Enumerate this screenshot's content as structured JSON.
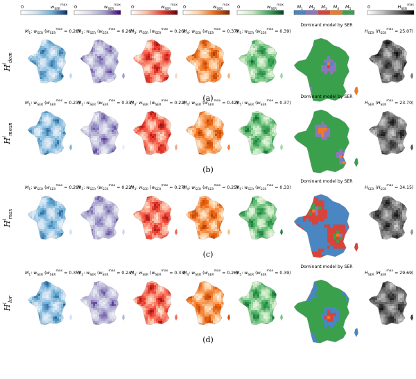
{
  "colorbars": [
    {
      "name": "m1-colorbar",
      "min": "0",
      "max": "w_SER^max",
      "colors": [
        "#ffffff",
        "#cfe1f2",
        "#6aaed6",
        "#08306b"
      ]
    },
    {
      "name": "m2-colorbar",
      "min": "0",
      "max": "w_SER^max",
      "colors": [
        "#ffffff",
        "#dadaeb",
        "#9e9ac8",
        "#3f007d"
      ]
    },
    {
      "name": "m3-colorbar",
      "min": "0",
      "max": "w_SER^max",
      "colors": [
        "#ffffff",
        "#fcbba1",
        "#ef3b2c",
        "#67000d"
      ]
    },
    {
      "name": "m4-colorbar",
      "min": "0",
      "max": "w_SER^max",
      "colors": [
        "#ffffff",
        "#fdd0a2",
        "#f16913",
        "#7f2704"
      ]
    },
    {
      "name": "m5-colorbar",
      "min": "0",
      "max": "w_SER^max",
      "colors": [
        "#ffffff",
        "#c7e9c0",
        "#41ab5d",
        "#00441b"
      ]
    },
    {
      "name": "h-colorbar",
      "min": "0",
      "max": "H_SER^max",
      "colors": [
        "#ffffff",
        "#bdbdbd",
        "#636363",
        "#000000"
      ]
    }
  ],
  "dominant_legend": {
    "labels": [
      "M1",
      "M2",
      "M3",
      "M4",
      "M5"
    ],
    "colors": [
      "#4a86c2",
      "#8c77bd",
      "#d8433a",
      "#ee7a24",
      "#3aa04c"
    ]
  },
  "dominant_title": "Dominant model by SER",
  "rows": [
    {
      "ylabel": "H^i_dom",
      "caption": "(a)",
      "weights": [
        "0.28",
        "0.26",
        "0.26",
        "0.37",
        "0.39"
      ],
      "h_max": "25.07",
      "dominant_mix": [
        0.05,
        0.12,
        0.02,
        0.03,
        0.78
      ]
    },
    {
      "ylabel": "H^i_mean",
      "caption": "(b)",
      "weights": [
        "0.23",
        "0.33",
        "0.22",
        "0.42",
        "0.37"
      ],
      "h_max": "23.70",
      "dominant_mix": [
        0.04,
        0.14,
        0.02,
        0.05,
        0.75
      ]
    },
    {
      "ylabel": "H^i_max",
      "caption": "(c)",
      "weights": [
        "0.29",
        "0.22",
        "0.27",
        "0.25",
        "0.33"
      ],
      "h_max": "34.15",
      "dominant_mix": [
        0.55,
        0.02,
        0.33,
        0.02,
        0.08
      ]
    },
    {
      "ylabel": "H^i_lor",
      "caption": "(d)",
      "weights": [
        "0.35",
        "0.24",
        "0.33",
        "0.26",
        "0.39"
      ],
      "h_max": "29.69",
      "dominant_mix": [
        0.22,
        0.03,
        0.1,
        0.01,
        0.64
      ]
    }
  ]
}
